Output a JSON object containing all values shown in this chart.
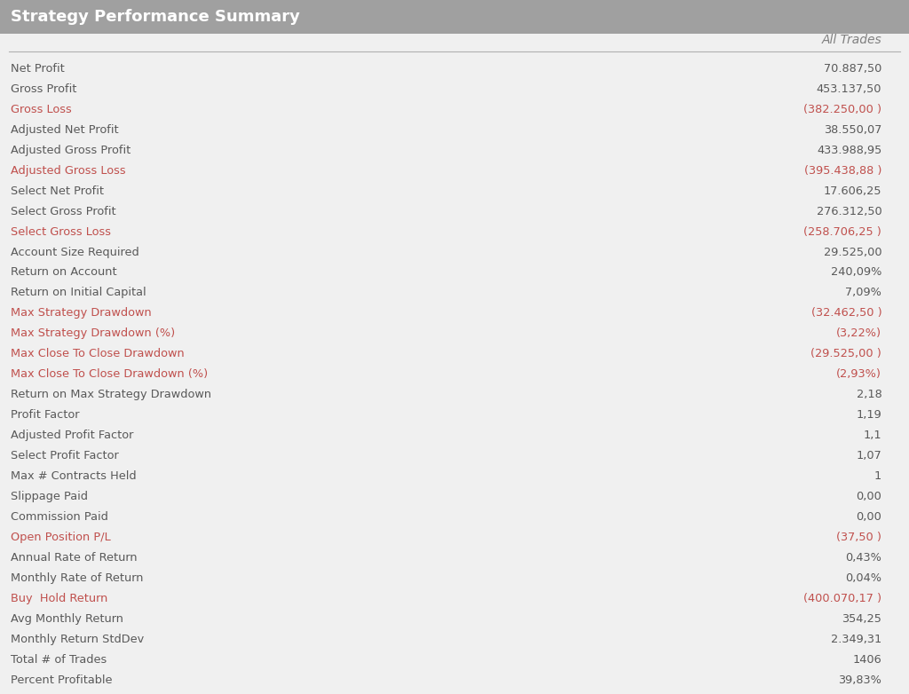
{
  "title": "Strategy Performance Summary",
  "header": "All Trades",
  "title_bg": "#a0a0a0",
  "title_color": "#ffffff",
  "header_color": "#808080",
  "normal_color": "#595959",
  "red_color": "#c0504d",
  "bg_color": "#f0f0f0",
  "rows": [
    {
      "label": "Net Profit",
      "value": "70.887,50",
      "red": false
    },
    {
      "label": "Gross Profit",
      "value": "453.137,50",
      "red": false
    },
    {
      "label": "Gross Loss",
      "value": "(382.250,00 )",
      "red": true
    },
    {
      "label": "Adjusted Net Profit",
      "value": "38.550,07",
      "red": false
    },
    {
      "label": "Adjusted Gross Profit",
      "value": "433.988,95",
      "red": false
    },
    {
      "label": "Adjusted Gross Loss",
      "value": "(395.438,88 )",
      "red": true
    },
    {
      "label": "Select Net Profit",
      "value": "17.606,25",
      "red": false
    },
    {
      "label": "Select Gross Profit",
      "value": "276.312,50",
      "red": false
    },
    {
      "label": "Select Gross Loss",
      "value": "(258.706,25 )",
      "red": true
    },
    {
      "label": "Account Size Required",
      "value": "29.525,00",
      "red": false
    },
    {
      "label": "Return on Account",
      "value": "240,09%",
      "red": false
    },
    {
      "label": "Return on Initial Capital",
      "value": "7,09%",
      "red": false
    },
    {
      "label": "Max Strategy Drawdown",
      "value": "(32.462,50 )",
      "red": true
    },
    {
      "label": "Max Strategy Drawdown (%)",
      "value": "(3,22%)",
      "red": true
    },
    {
      "label": "Max Close To Close Drawdown",
      "value": "(29.525,00 )",
      "red": true
    },
    {
      "label": "Max Close To Close Drawdown (%)",
      "value": "(2,93%)",
      "red": true
    },
    {
      "label": "Return on Max Strategy Drawdown",
      "value": "2,18",
      "red": false
    },
    {
      "label": "Profit Factor",
      "value": "1,19",
      "red": false
    },
    {
      "label": "Adjusted Profit Factor",
      "value": "1,1",
      "red": false
    },
    {
      "label": "Select Profit Factor",
      "value": "1,07",
      "red": false
    },
    {
      "label": "Max # Contracts Held",
      "value": "1",
      "red": false
    },
    {
      "label": "Slippage Paid",
      "value": "0,00",
      "red": false
    },
    {
      "label": "Commission Paid",
      "value": "0,00",
      "red": false
    },
    {
      "label": "Open Position P/L",
      "value": "(37,50 )",
      "red": true
    },
    {
      "label": "Annual Rate of Return",
      "value": "0,43%",
      "red": false
    },
    {
      "label": "Monthly Rate of Return",
      "value": "0,04%",
      "red": false
    },
    {
      "label": "Buy  Hold Return",
      "value": "(400.070,17 )",
      "red": true
    },
    {
      "label": "Avg Monthly Return",
      "value": "354,25",
      "red": false
    },
    {
      "label": "Monthly Return StdDev",
      "value": "2.349,31",
      "red": false
    },
    {
      "label": "Total # of Trades",
      "value": "1406",
      "red": false
    },
    {
      "label": "Percent Profitable",
      "value": "39,83%",
      "red": false
    }
  ]
}
